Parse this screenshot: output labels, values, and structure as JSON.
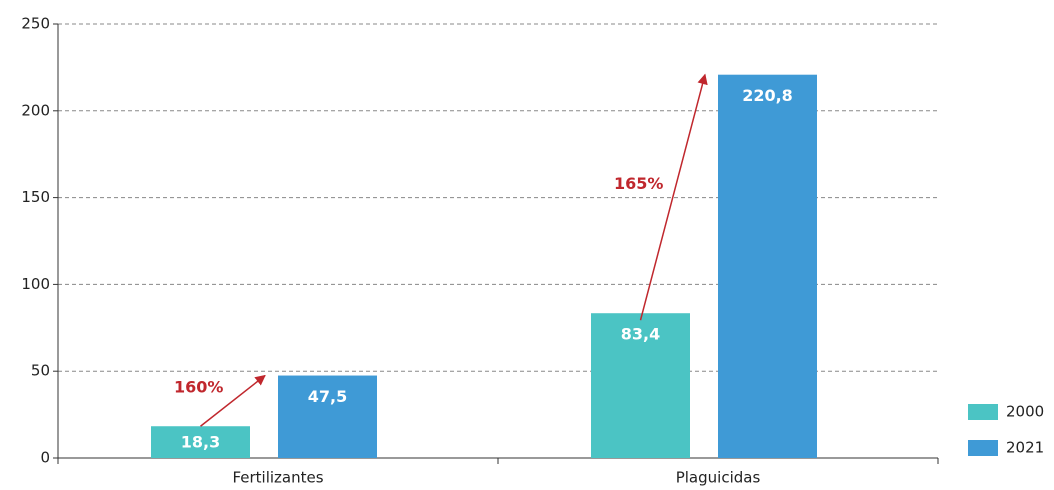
{
  "chart_data": {
    "type": "bar",
    "categories": [
      "Fertilizantes",
      "Plaguicidas"
    ],
    "series": [
      {
        "name": "2000",
        "color": "#4bc4c4",
        "values": [
          18.3,
          83.4
        ],
        "value_labels": [
          "18,3",
          "83,4"
        ]
      },
      {
        "name": "2021",
        "color": "#3f9ad6",
        "values": [
          47.5,
          220.8
        ],
        "value_labels": [
          "47,5",
          "220,8"
        ]
      }
    ],
    "annotations": [
      "160%",
      "165%"
    ],
    "ylim": [
      0,
      250
    ],
    "yticks": [
      0,
      50,
      100,
      150,
      200,
      250
    ],
    "grid": true,
    "legend": "lower right"
  }
}
